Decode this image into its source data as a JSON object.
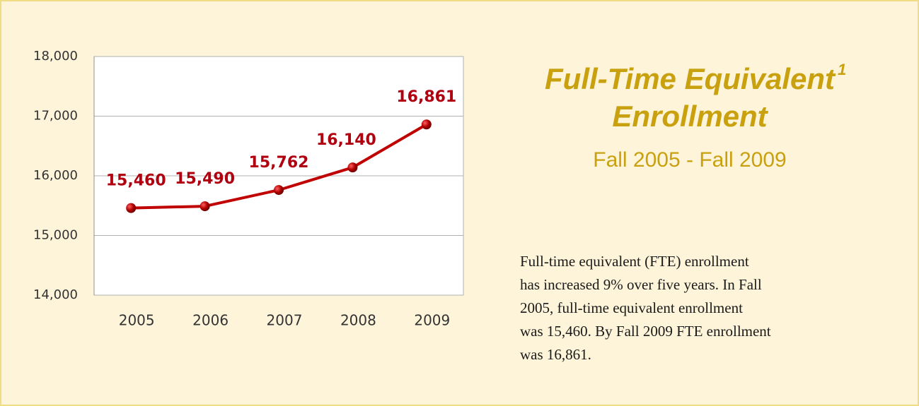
{
  "chart_data": {
    "type": "line",
    "title": "Full-Time Equivalent",
    "title_superscript": "1",
    "title_line2": "Enrollment",
    "subtitle": "Fall 2005 - Fall 2009",
    "categories": [
      "2005",
      "2006",
      "2007",
      "2008",
      "2009"
    ],
    "values": [
      15460,
      15490,
      15762,
      16140,
      16861
    ],
    "value_labels": [
      "15,460",
      "15,490",
      "15,762",
      "16,140",
      "16,861"
    ],
    "color": "#c00000",
    "ylim": [
      14000,
      18000
    ],
    "yticks": [
      {
        "value": 14000,
        "label": "14,000"
      },
      {
        "value": 15000,
        "label": "15,000"
      },
      {
        "value": 16000,
        "label": "16,000"
      },
      {
        "value": 17000,
        "label": "17,000"
      },
      {
        "value": 18000,
        "label": "18,000"
      }
    ],
    "grid": true
  },
  "description": {
    "lines": [
      "Full-time equivalent (FTE) enrollment",
      "has increased 9% over five years. In Fall",
      "2005, full-time equivalent enrollment",
      "was 15,460.  By Fall 2009 FTE enrollment",
      "was 16,861."
    ]
  }
}
